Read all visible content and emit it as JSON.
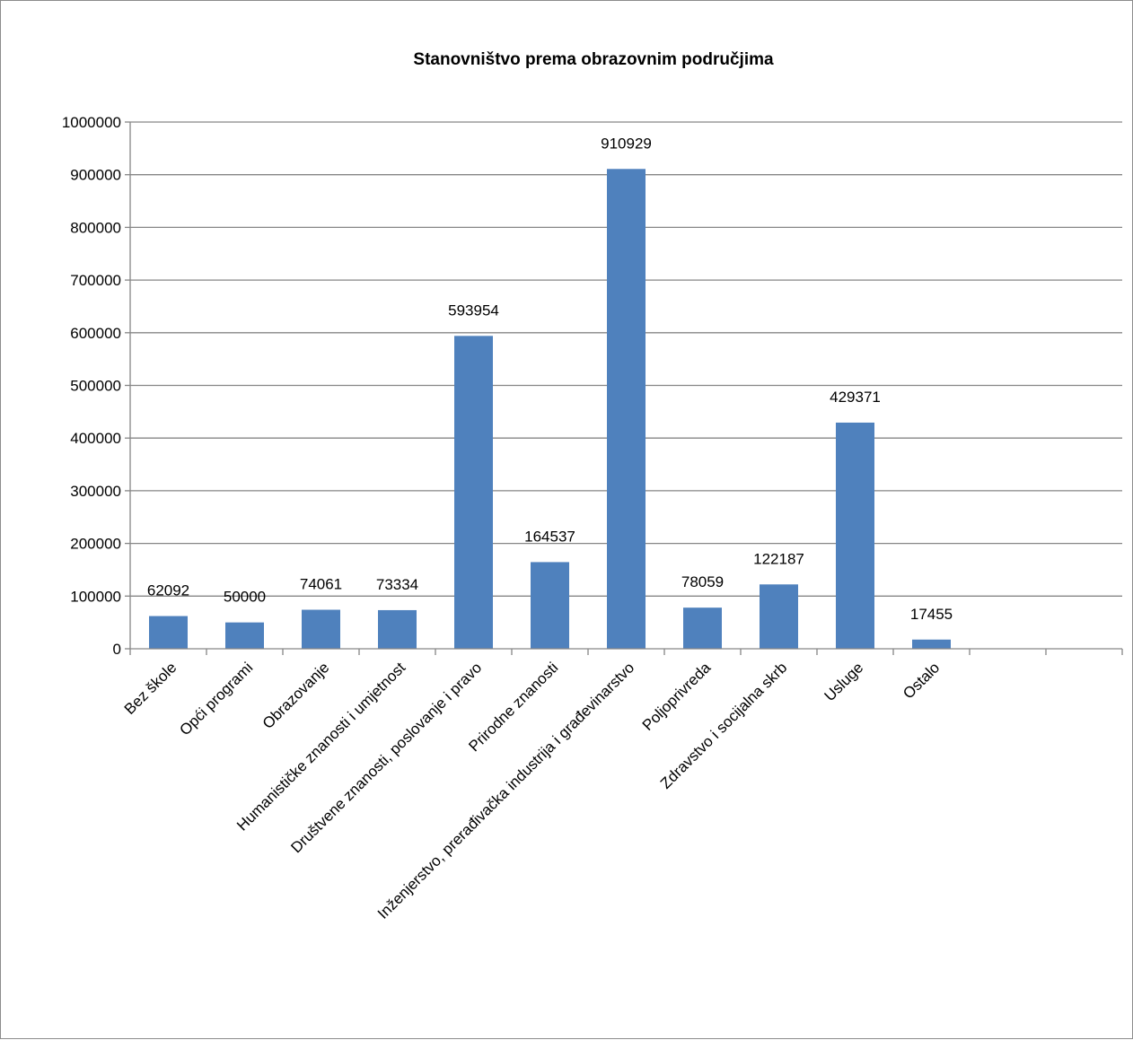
{
  "chart_data": {
    "type": "bar",
    "title": "Stanovništvo prema obrazovnim područjima",
    "xlabel": "",
    "ylabel": "",
    "categories": [
      "Bez škole",
      "Opći programi",
      "Obrazovanje",
      "Humanističke znanosti i umjetnost",
      "Društvene znanosti, poslovanje i pravo",
      "Prirodne znanosti",
      "Inženjerstvo, prerađivačka industrija i građevinarstvo",
      "Poljoprivreda",
      "Zdravstvo i socijalna skrb",
      "Usluge",
      "Ostalo",
      "",
      ""
    ],
    "values": [
      62092,
      50000,
      74061,
      73334,
      593954,
      164537,
      910929,
      78059,
      122187,
      429371,
      17455,
      null,
      null
    ],
    "data_labels": [
      "62092",
      "50000",
      "74061",
      "73334",
      "593954",
      "164537",
      "910929",
      "78059",
      "122187",
      "429371",
      "17455",
      "",
      ""
    ],
    "ylim": [
      0,
      1000000
    ],
    "yticks": [
      0,
      100000,
      200000,
      300000,
      400000,
      500000,
      600000,
      700000,
      800000,
      900000,
      1000000
    ],
    "ytick_labels": [
      "0",
      "100000",
      "200000",
      "300000",
      "400000",
      "500000",
      "600000",
      "700000",
      "800000",
      "900000",
      "1000000"
    ],
    "grid": true,
    "legend": "none",
    "bar_color": "#4f81bd",
    "grid_color": "#868686"
  }
}
